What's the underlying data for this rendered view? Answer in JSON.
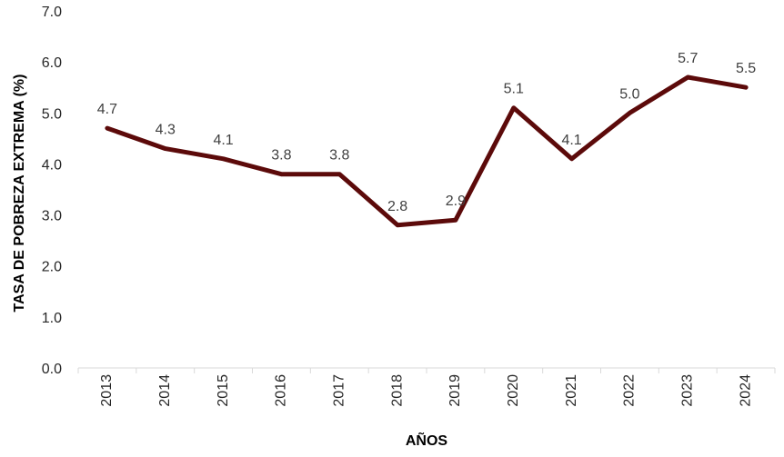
{
  "chart_data": {
    "type": "line",
    "xlabel": "AÑOS",
    "ylabel": "TASA DE POBREZA EXTREMA (%)",
    "categories": [
      "2013",
      "2014",
      "2015",
      "2016",
      "2017",
      "2018",
      "2019",
      "2020",
      "2021",
      "2022",
      "2023",
      "2024"
    ],
    "series": [
      {
        "values": [
          4.7,
          4.3,
          4.1,
          3.8,
          3.8,
          2.8,
          2.9,
          5.1,
          4.1,
          5.0,
          5.7,
          5.5
        ],
        "value_labels": [
          "4.7",
          "4.3",
          "4.1",
          "3.8",
          "3.8",
          "2.8",
          "2.9",
          "5.1",
          "4.1",
          "5.0",
          "5.7",
          "5.5"
        ],
        "color": "#5c0a0a"
      }
    ],
    "ylim": [
      0,
      7
    ],
    "yticks": [
      "0.0",
      "1.0",
      "2.0",
      "3.0",
      "4.0",
      "5.0",
      "6.0",
      "7.0"
    ],
    "grid": false,
    "legend": "none"
  }
}
